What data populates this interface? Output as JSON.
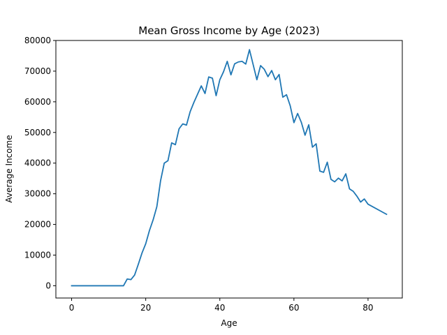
{
  "chart_data": {
    "type": "line",
    "title": "Mean Gross Income by Age (2023)",
    "xlabel": "Age",
    "ylabel": "Average Income",
    "xlim": [
      -4.25,
      89.25
    ],
    "ylim": [
      -4000,
      80000
    ],
    "xticks": [
      0,
      20,
      40,
      60,
      80
    ],
    "yticks": [
      0,
      10000,
      20000,
      30000,
      40000,
      50000,
      60000,
      70000,
      80000
    ],
    "xtick_labels": [
      "0",
      "20",
      "40",
      "60",
      "80"
    ],
    "ytick_labels": [
      "0",
      "10000",
      "20000",
      "30000",
      "40000",
      "50000",
      "60000",
      "70000",
      "80000"
    ],
    "grid": false,
    "series": [
      {
        "name": "Average Income",
        "color": "#1f77b4",
        "x": [
          0,
          1,
          2,
          3,
          4,
          5,
          6,
          7,
          8,
          9,
          10,
          11,
          12,
          13,
          14,
          15,
          16,
          17,
          18,
          19,
          20,
          21,
          22,
          23,
          24,
          25,
          26,
          27,
          28,
          29,
          30,
          31,
          32,
          33,
          34,
          35,
          36,
          37,
          38,
          39,
          40,
          41,
          42,
          43,
          44,
          45,
          46,
          47,
          48,
          49,
          50,
          51,
          52,
          53,
          54,
          55,
          56,
          57,
          58,
          59,
          60,
          61,
          62,
          63,
          64,
          65,
          66,
          67,
          68,
          69,
          70,
          71,
          72,
          73,
          74,
          75,
          76,
          77,
          78,
          79,
          80,
          85
        ],
        "values": [
          0,
          0,
          0,
          0,
          0,
          0,
          0,
          0,
          0,
          0,
          0,
          0,
          0,
          0,
          0,
          2200,
          2000,
          3500,
          7000,
          10700,
          13700,
          18000,
          21500,
          25800,
          34200,
          40000,
          40800,
          46600,
          46000,
          51200,
          52800,
          52400,
          56800,
          59800,
          62500,
          65200,
          62700,
          68100,
          67700,
          62000,
          67200,
          69800,
          73200,
          68800,
          72400,
          73000,
          73200,
          72300,
          77000,
          72100,
          67200,
          71800,
          70600,
          68200,
          70200,
          67200,
          68900,
          61500,
          62300,
          58700,
          53200,
          56200,
          53300,
          49100,
          52500,
          45200,
          46300,
          37400,
          37000,
          40300,
          34700,
          33900,
          35100,
          34200,
          36500,
          31600,
          30800,
          29200,
          27300,
          28300,
          26600,
          23300
        ]
      }
    ]
  }
}
